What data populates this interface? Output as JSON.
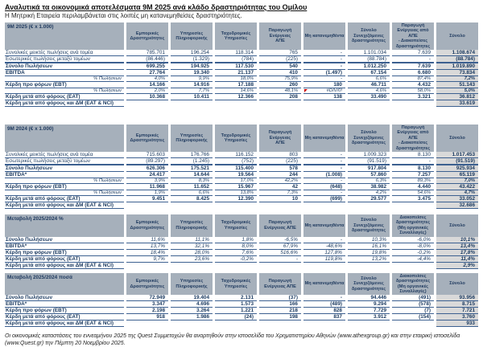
{
  "page": {
    "title": "Αναλυτικά τα οικονομικά αποτελέσματα 9Μ 2025 ανά κλάδο δραστηριότητας του Ομίλου",
    "subtitle": "Η Μητρική Εταιρεία περιλαμβάνεται στις λοιπές μη κατανεμηθείσες δραστηριότητες.",
    "footer": "Οι οικονομικές καταστάσεις του εννεαμήνου 2025 της Quest Συμμετοχών θα αναρτηθούν στην ιστοσελίδα του Χρηματιστηρίου Αθηνών (www.athexgroup.gr) και στην εταιρική ιστοσελίδα (www.Quest.gr) την Πέμπτη 20 Νοεμβρίου 2025."
  },
  "colors": {
    "header_bg": "#a6b0bb",
    "total_column_bg": "#d9d9d9",
    "grid_line": "#3c6090",
    "text": "#17375e",
    "comment_flag": "#cc0000"
  },
  "tables": [
    {
      "id": "9m-2025",
      "title": "9Μ 2025  (€ x 1.000)",
      "columns": [
        "Εμπορικές\nΔραστηριότητες",
        "Υπηρεσίες Πληροφορικής",
        "Ταχυδρομικές Υπηρεσίες",
        "Παραγωγή Ενέργειας\nΑΠΕ",
        "Μη κατανεμηθέντα",
        "Σύνολο\nΣυνεχιζόμενες\nδραστηριότητες",
        "Παραγωγή\nΕνέργειας από ΑΠΕ\n- Διακοπείσες\nδραστηριότητες",
        "Σύνολο"
      ],
      "rows": [
        {
          "label": "Συνολικές μεικτές πωλήσεις ανά τομέα",
          "style": "n",
          "values": [
            "785.701",
            "196.254",
            "118.314",
            "765",
            "-",
            "1.101.034",
            "7.639",
            "1.108.674"
          ]
        },
        {
          "label": "Εσωτερικές πωλήσεις μεταξύ τομέων",
          "style": "n",
          "values": [
            "(86.446)",
            "(1.329)",
            "(784)",
            "(225)",
            "-",
            "(88.784)",
            "-",
            "(88.784)"
          ]
        },
        {
          "label": "Σύνολο Πωλήσεων",
          "style": "t",
          "values": [
            "699.255",
            "194.925",
            "117.530",
            "540",
            "-",
            "1.012.250",
            "7.639",
            "1.019.890"
          ]
        },
        {
          "label": "EBITDA",
          "style": "b",
          "values": [
            "27.764",
            "19.340",
            "21.137",
            "410",
            "(1.497)",
            "67.154",
            "6.680",
            "73.834"
          ]
        },
        {
          "label": "% Πωλήσεων",
          "style": "p",
          "values": [
            "4,0%",
            "9,9%",
            "18,0%",
            "75,9%",
            "-",
            "6,6%",
            "87,4%",
            "7,2%"
          ]
        },
        {
          "label": "Κέρδη προ φόρων (EBT)",
          "style": "b",
          "values": [
            "14.166",
            "14.916",
            "17.188",
            "260",
            "180",
            "46.711",
            "4.432",
            "51.143"
          ]
        },
        {
          "label": "% Πωλήσεων",
          "style": "p",
          "values": [
            "2,0%",
            "7,7%",
            "14,6%",
            "48,1%",
            {
              "v": "#DIV/0!",
              "flag": true
            },
            "4,6%",
            "58,0%",
            "5,0%"
          ]
        },
        {
          "label": "Κέρδη μετά από φόρους (EAT)",
          "style": "b",
          "values": [
            "10.368",
            "10.411",
            "12.366",
            "208",
            "138",
            "33.490",
            "3.321",
            "36.812"
          ]
        },
        {
          "label": "Κέρδη μετά από φόρους και ΔΜ (EAT & NCI)",
          "style": "nci",
          "values": [
            null,
            null,
            null,
            null,
            null,
            null,
            null,
            "33.619"
          ]
        }
      ]
    },
    {
      "id": "9m-2024",
      "title": "9Μ 2024  (€ x 1.000)",
      "columns": [
        "Εμπορικές\nΔραστηριότητες",
        "Υπηρεσίες Πληροφορικής",
        "Ταχυδρομικές Υπηρεσίες",
        "Παραγωγή Ενέργειας\nΑΠΕ",
        "Μη κατανεμηθέντα",
        "Σύνολο\nΣυνεχιζόμενες\nδραστηριότητες",
        "Παραγωγή\nΕνέργειας από ΑΠΕ\n- Διακοπείσες\nδραστηριότητες",
        "Σύνολο"
      ],
      "rows": [
        {
          "label": "Συνολικές μεικτές πωλήσεις ανά τομέα",
          "style": "n",
          "values": [
            "715.603",
            "176.766",
            "116.152",
            "803",
            "-",
            "1.009.323",
            "8.130",
            "1.017.453"
          ]
        },
        {
          "label": "Εσωτερικές πωλήσεις μεταξύ τομέων",
          "style": "n",
          "values": [
            "(89.297)",
            "(1.245)",
            "(752)",
            "(225)",
            "-",
            "(91.519)",
            "-",
            "(91.519)"
          ]
        },
        {
          "label": "Σύνολο Πωλήσεων",
          "style": "t",
          "values": [
            "626.306",
            "175.521",
            "115.400",
            "578",
            "-",
            "917.804",
            "8.130",
            "925.934"
          ]
        },
        {
          "label": "EBITDA*",
          "style": "b",
          "values": [
            "24.417",
            "14.644",
            "19.564",
            "244",
            "(1.008)",
            "57.860",
            "7.257",
            "65.119"
          ]
        },
        {
          "label": "% Πωλήσεων",
          "style": "p",
          "values": [
            "3,9%",
            "8,3%",
            "17,0%",
            "42,2%",
            "-",
            "6,3%",
            "89,3%",
            "7,0%"
          ]
        },
        {
          "label": "Κέρδη προ φόρων (EBT)",
          "style": "b",
          "values": [
            "11.968",
            "11.652",
            "15.967",
            "42",
            "(648)",
            "38.982",
            "4.440",
            "43.422"
          ]
        },
        {
          "label": "% Πωλήσεων",
          "style": "p",
          "values": [
            "1,9%",
            "6,6%",
            "13,8%",
            "7,3%",
            "-",
            "4,2%",
            "54,6%",
            "4,7%"
          ]
        },
        {
          "label": "Κέρδη μετά από φόρους (EAT)",
          "style": "b",
          "values": [
            "9.451",
            "8.425",
            "12.390",
            "10",
            "(699)",
            "29.577",
            "3.475",
            "33.052"
          ]
        },
        {
          "label": "Κέρδη μετά από φόρους και ΔΜ (EAT & NCI)",
          "style": "nci",
          "values": [
            null,
            null,
            null,
            null,
            null,
            null,
            null,
            "32.686"
          ]
        }
      ]
    },
    {
      "id": "change-pct",
      "title": "Μεταβολή 2025/2024 %",
      "italic_values": true,
      "columns": [
        "Εμπορικές\nΔραστηριότητες",
        "Υπηρεσίες Πληροφορικής",
        "Ταχυδρομικές Υπηρεσίες",
        "Παραγωγή Ενέργειας ΑΠΕ",
        "Μη κατανεμηθέντα",
        "Σύνολο\nΣυνεχιζόμενες\nδραστηριότητες",
        "Διακοπείσες\nδραστηριότητες\n(Μη οργανικές\nΣυναλλαγές)",
        "Σύνολο"
      ],
      "rows": [
        {
          "label": "Σύνολο Πωλήσεων",
          "style": "b",
          "values": [
            "11,6%",
            "11,1%",
            "1,8%",
            "-6,5%",
            "-",
            "10,3%",
            "-6,0%",
            "10,1%"
          ]
        },
        {
          "label": "EBITDA*",
          "style": "b",
          "values": [
            "13,7%",
            "32,1%",
            "8,0%",
            "67,9%",
            "-48,6%",
            "16,1%",
            "-8,0%",
            "13,4%"
          ]
        },
        {
          "label": "Κέρδη προ φόρων (EBT)",
          "style": "b",
          "values": [
            "18,4%",
            "28,0%",
            "7,6%",
            "516,6%",
            "127,8%",
            "19,8%",
            "-0,2%",
            "17,8%"
          ]
        },
        {
          "label": "Κέρδη μετά από φόρους (EAT)",
          "style": "b",
          "values": [
            "9,7%",
            "23,6%",
            "-0,2%",
            "-",
            "119,8%",
            "13,2%",
            "-4,4%",
            "11,4%"
          ]
        },
        {
          "label": "Κέρδη μετά από φόρους και ΔΜ (EAT & NCI)",
          "style": "nci",
          "values": [
            null,
            null,
            null,
            null,
            null,
            null,
            null,
            "2,9%"
          ]
        }
      ]
    },
    {
      "id": "change-amount",
      "title": "Μεταβολή 2025/2024 ποσά",
      "columns": [
        "Εμπορικές\nΔραστηριότητες",
        "Υπηρεσίες Πληροφορικής",
        "Ταχυδρομικές Υπηρεσίες",
        "Παραγωγή Ενέργειας ΑΠΕ",
        "Μη κατανεμηθέντα",
        "Σύνολο\nΣυνεχιζόμενες\nδραστηριότητες",
        "Διακοπείσες\nδραστηριότητες\n(Μη οργανικές\nΣυναλλαγές)",
        "Σύνολο"
      ],
      "rows": [
        {
          "label": "Σύνολο Πωλήσεων",
          "style": "b",
          "values": [
            "72.949",
            "19.404",
            "2.131",
            "(37)",
            "-",
            "94.446",
            "(491)",
            "93.956"
          ]
        },
        {
          "label": "EBITDA*",
          "style": "b",
          "values": [
            "3.347",
            "4.696",
            "1.573",
            "166",
            "(489)",
            "9.294",
            "(578)",
            "8.715"
          ]
        },
        {
          "label": "Κέρδη προ φόρων (EBT)",
          "style": "b",
          "values": [
            "2.198",
            "3.264",
            "1.221",
            "218",
            "828",
            "7.729",
            "(7)",
            "7.721"
          ]
        },
        {
          "label": "Κέρδη μετά από φόρους (EAT)",
          "style": "b",
          "values": [
            "918",
            "1.986",
            "(24)",
            "198",
            "837",
            "3.912",
            "(154)",
            "3.760"
          ]
        },
        {
          "label": "Κέρδη μετά από φόρους και ΔΜ (EAT & NCI)",
          "style": "nci",
          "values": [
            null,
            null,
            null,
            null,
            null,
            null,
            null,
            "933"
          ]
        }
      ]
    }
  ]
}
